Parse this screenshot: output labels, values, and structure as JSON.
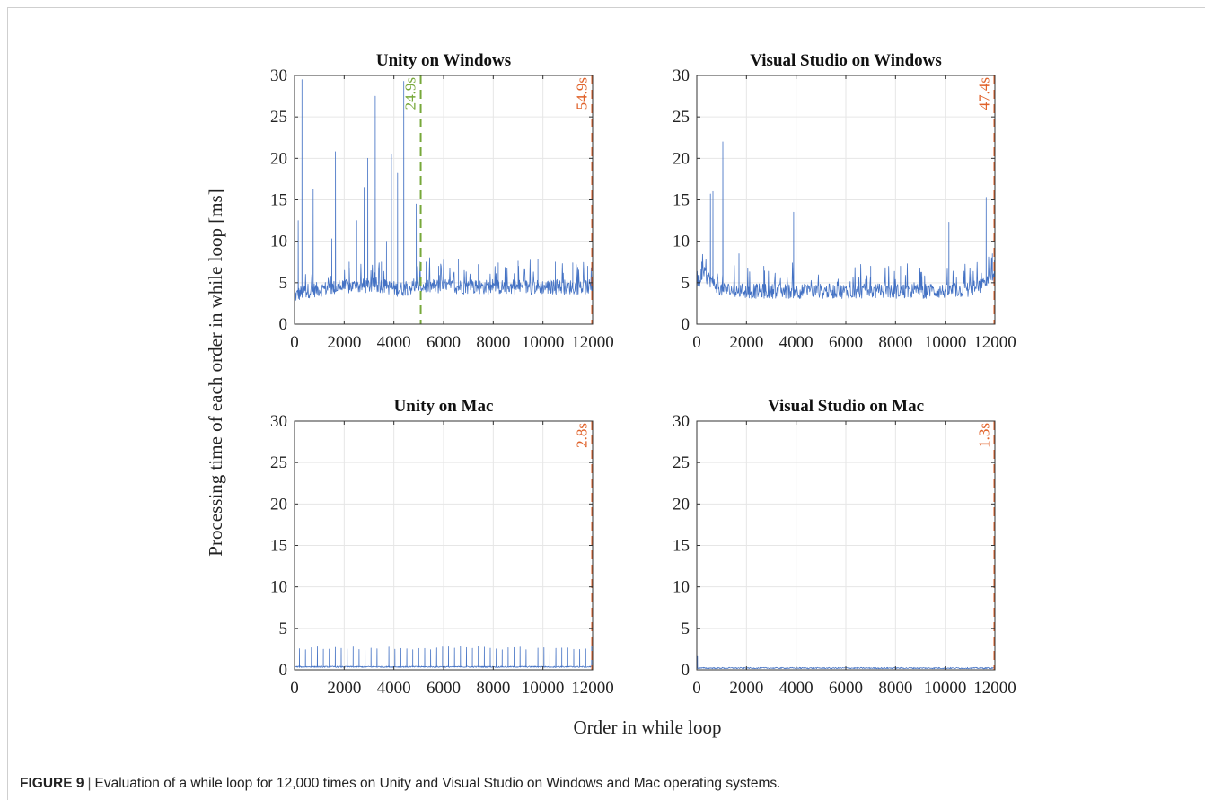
{
  "figure": {
    "label": "FIGURE 9",
    "separator": "|",
    "caption": "Evaluation of a while loop for 12,000 times on Unity and Visual Studio on Windows and Mac operating systems.",
    "ylabel": "Processing time of each order in while loop [ms]",
    "xlabel": "Order in while loop"
  },
  "colors": {
    "series": "#4472c4",
    "marker_green": "#77a83a",
    "marker_orange": "#e0622a",
    "grid": "#e6e6e6",
    "axis": "#333333"
  },
  "chart_data": [
    {
      "type": "line",
      "title": "Unity on Windows",
      "xlim": [
        0,
        12000
      ],
      "ylim": [
        0,
        30
      ],
      "xticks": [
        0,
        2000,
        4000,
        6000,
        8000,
        10000,
        12000
      ],
      "yticks": [
        0,
        5,
        10,
        15,
        20,
        25,
        30
      ],
      "grid": true,
      "baseline": [
        [
          0,
          3.2
        ],
        [
          400,
          3.8
        ],
        [
          1500,
          4.2
        ],
        [
          2500,
          4.4
        ],
        [
          3500,
          4.5
        ],
        [
          4200,
          4.0
        ],
        [
          5000,
          4.4
        ],
        [
          8000,
          4.3
        ],
        [
          12000,
          4.3
        ]
      ],
      "spikes": [
        [
          150,
          12.5
        ],
        [
          300,
          29.5
        ],
        [
          750,
          16.3
        ],
        [
          1500,
          10.3
        ],
        [
          1650,
          20.8
        ],
        [
          2200,
          7.5
        ],
        [
          2500,
          12.5
        ],
        [
          2800,
          16.5
        ],
        [
          2950,
          20.0
        ],
        [
          3250,
          27.5
        ],
        [
          3500,
          7.5
        ],
        [
          3700,
          10.0
        ],
        [
          3900,
          20.5
        ],
        [
          4150,
          18.2
        ],
        [
          4400,
          29.3
        ],
        [
          4900,
          14.5
        ],
        [
          5300,
          7.5
        ],
        [
          5800,
          7.0
        ],
        [
          6600,
          7.8
        ],
        [
          7400,
          7.2
        ],
        [
          8200,
          7.4
        ],
        [
          9000,
          7.6
        ],
        [
          9800,
          7.8
        ],
        [
          10500,
          7.5
        ],
        [
          11200,
          7.4
        ],
        [
          11800,
          7.0
        ]
      ],
      "markers": [
        {
          "x": 5080,
          "label": "24.9s",
          "color": "green"
        },
        {
          "x": 12000,
          "label": "54.9s",
          "color": "orange"
        }
      ]
    },
    {
      "type": "line",
      "title": "Visual Studio on Windows",
      "xlim": [
        0,
        12000
      ],
      "ylim": [
        0,
        30
      ],
      "xticks": [
        0,
        2000,
        4000,
        6000,
        8000,
        10000,
        12000
      ],
      "yticks": [
        0,
        5,
        10,
        15,
        20,
        25,
        30
      ],
      "grid": true,
      "baseline": [
        [
          0,
          4.5
        ],
        [
          300,
          5.8
        ],
        [
          600,
          5.0
        ],
        [
          1000,
          4.0
        ],
        [
          2000,
          3.8
        ],
        [
          5500,
          3.8
        ],
        [
          10000,
          3.8
        ],
        [
          11000,
          4.0
        ],
        [
          11500,
          4.5
        ],
        [
          12000,
          5.5
        ]
      ],
      "spikes": [
        [
          200,
          7.5
        ],
        [
          550,
          15.7
        ],
        [
          650,
          16.0
        ],
        [
          1050,
          22.0
        ],
        [
          1700,
          8.5
        ],
        [
          2700,
          7.0
        ],
        [
          3900,
          13.5
        ],
        [
          5400,
          7.0
        ],
        [
          7000,
          7.0
        ],
        [
          8200,
          7.0
        ],
        [
          10150,
          12.3
        ],
        [
          11650,
          15.3
        ],
        [
          11900,
          8.5
        ]
      ],
      "markers": [
        {
          "x": 12000,
          "label": "47.4s",
          "color": "orange"
        }
      ]
    },
    {
      "type": "line",
      "title": "Unity on Mac",
      "xlim": [
        0,
        12000
      ],
      "ylim": [
        0,
        30
      ],
      "xticks": [
        0,
        2000,
        4000,
        6000,
        8000,
        10000,
        12000
      ],
      "yticks": [
        0,
        5,
        10,
        15,
        20,
        25,
        30
      ],
      "grid": true,
      "baseline": [
        [
          0,
          0.35
        ],
        [
          12000,
          0.35
        ]
      ],
      "periodic_spikes": {
        "start": 200,
        "step": 240,
        "value": 2.6
      },
      "markers": [
        {
          "x": 12000,
          "label": "2.8s",
          "color": "orange"
        }
      ]
    },
    {
      "type": "line",
      "title": "Visual Studio on Mac",
      "xlim": [
        0,
        12000
      ],
      "ylim": [
        0,
        30
      ],
      "xticks": [
        0,
        2000,
        4000,
        6000,
        8000,
        10000,
        12000
      ],
      "yticks": [
        0,
        5,
        10,
        15,
        20,
        25,
        30
      ],
      "grid": true,
      "baseline": [
        [
          0,
          0.2
        ],
        [
          12000,
          0.2
        ]
      ],
      "spikes": [
        [
          30,
          1.6
        ]
      ],
      "markers": [
        {
          "x": 12000,
          "label": "1.3s",
          "color": "orange"
        }
      ]
    }
  ]
}
